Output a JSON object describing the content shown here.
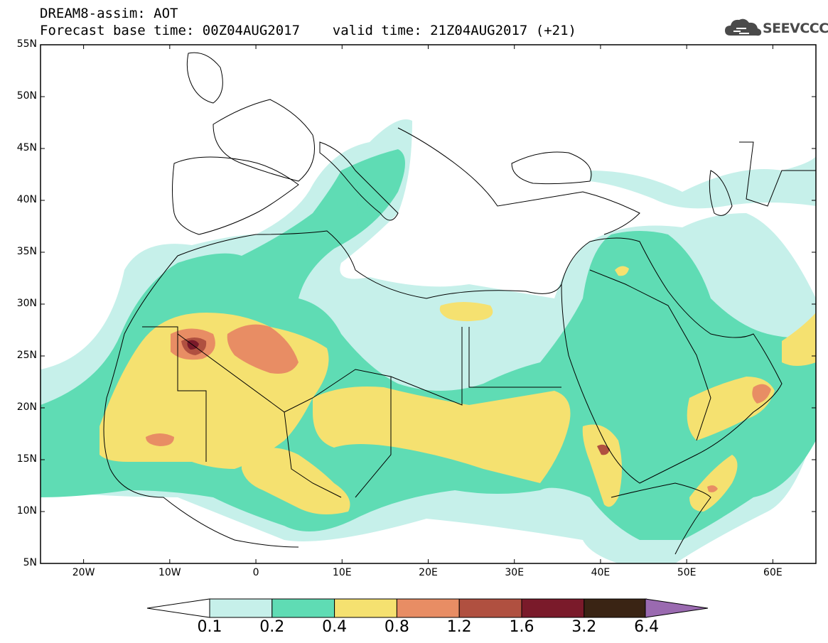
{
  "header": {
    "title_line1": "DREAM8-assim: AOT",
    "title_line2": "Forecast base time: 00Z04AUG2017    valid time: 21Z04AUG2017 (+21)",
    "logo_text": "SEEVCCC"
  },
  "axes": {
    "lat_labels": [
      "55N",
      "50N",
      "45N",
      "40N",
      "35N",
      "30N",
      "25N",
      "20N",
      "15N",
      "10N",
      "5N"
    ],
    "lon_labels": [
      "20W",
      "10W",
      "0",
      "10E",
      "20E",
      "30E",
      "40E",
      "50E",
      "60E"
    ]
  },
  "colorbar": {
    "ticks": [
      "0.1",
      "0.2",
      "0.4",
      "0.8",
      "1.2",
      "1.6",
      "3.2",
      "6.4"
    ],
    "colors": [
      "#c6f0ea",
      "#5fdcb4",
      "#f5e170",
      "#e88d64",
      "#b05040",
      "#7a1a2a",
      "#3a2414",
      "#9a6ab0"
    ]
  },
  "map_data": {
    "lon_range": [
      -25,
      65
    ],
    "lat_range": [
      5,
      55
    ],
    "field": "AOT",
    "colors": {
      "c01": "#c6f0ea",
      "c02": "#5fdcb4",
      "c04": "#f5e170",
      "c08": "#e88d64",
      "c12": "#b05040",
      "c16": "#7a1a2a"
    },
    "notes": "Dust AOT plume over Sahara and Arabian Peninsula"
  }
}
